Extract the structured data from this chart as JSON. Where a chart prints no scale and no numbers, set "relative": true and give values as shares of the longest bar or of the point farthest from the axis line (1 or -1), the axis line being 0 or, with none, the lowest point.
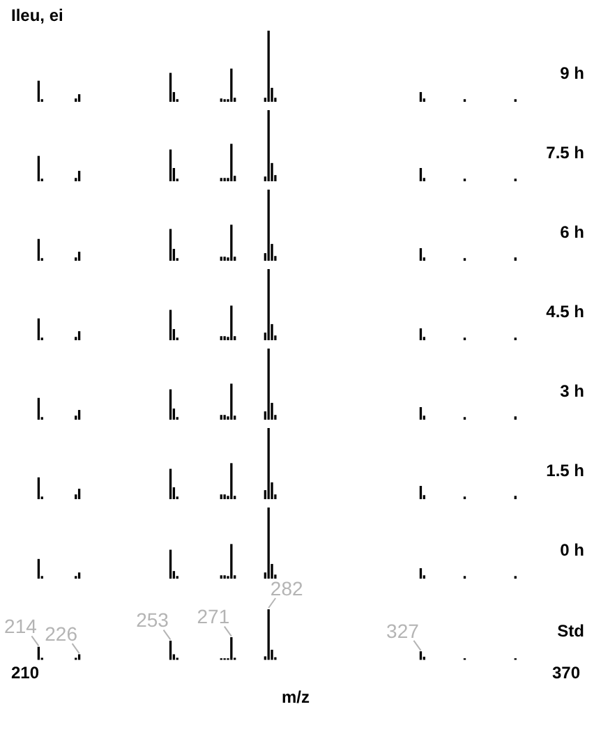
{
  "chart_data": [
    {
      "type": "bar",
      "relative": true,
      "title": "9 h",
      "annotations": [
        "Ileu, ei"
      ],
      "tick_labels": false,
      "xlim": [
        210,
        370
      ],
      "x": [
        214,
        215,
        225,
        226,
        253,
        254,
        255,
        268,
        269,
        270,
        271,
        272,
        281,
        282,
        283,
        284,
        327,
        328,
        340,
        355
      ],
      "series": [
        {
          "color": "#000000",
          "values": [
            0.29,
            0.03,
            0.04,
            0.1,
            0.4,
            0.13,
            0.03,
            0.04,
            0.03,
            0.03,
            0.46,
            0.05,
            0.05,
            1,
            0.19,
            0.05,
            0.13,
            0.04,
            0.03,
            0.03
          ]
        }
      ]
    },
    {
      "type": "bar",
      "relative": true,
      "title": "7.5 h",
      "tick_labels": false,
      "xlim": [
        210,
        370
      ],
      "x": [
        214,
        215,
        225,
        226,
        253,
        254,
        255,
        268,
        269,
        270,
        271,
        272,
        281,
        282,
        283,
        284,
        327,
        328,
        340,
        355
      ],
      "series": [
        {
          "color": "#000000",
          "values": [
            0.35,
            0.03,
            0.04,
            0.14,
            0.44,
            0.18,
            0.03,
            0.04,
            0.04,
            0.04,
            0.52,
            0.07,
            0.06,
            1,
            0.25,
            0.08,
            0.18,
            0.04,
            0.03,
            0.03
          ]
        }
      ]
    },
    {
      "type": "bar",
      "relative": true,
      "title": "6 h",
      "tick_labels": false,
      "xlim": [
        210,
        370
      ],
      "x": [
        214,
        215,
        225,
        226,
        253,
        254,
        255,
        268,
        269,
        270,
        271,
        272,
        281,
        282,
        283,
        284,
        327,
        328,
        340,
        355
      ],
      "series": [
        {
          "color": "#000000",
          "values": [
            0.3,
            0.03,
            0.04,
            0.12,
            0.44,
            0.16,
            0.03,
            0.05,
            0.05,
            0.04,
            0.5,
            0.05,
            0.1,
            1,
            0.23,
            0.06,
            0.17,
            0.04,
            0.03,
            0.04
          ]
        }
      ]
    },
    {
      "type": "bar",
      "relative": true,
      "title": "4.5 h",
      "tick_labels": false,
      "xlim": [
        210,
        370
      ],
      "x": [
        214,
        215,
        225,
        226,
        253,
        254,
        255,
        268,
        269,
        270,
        271,
        272,
        281,
        282,
        283,
        284,
        327,
        328,
        340,
        355
      ],
      "series": [
        {
          "color": "#000000",
          "values": [
            0.3,
            0.03,
            0.04,
            0.12,
            0.42,
            0.15,
            0.03,
            0.05,
            0.05,
            0.04,
            0.48,
            0.05,
            0.1,
            1,
            0.22,
            0.06,
            0.16,
            0.04,
            0.03,
            0.03
          ]
        }
      ]
    },
    {
      "type": "bar",
      "relative": true,
      "title": "3 h",
      "tick_labels": false,
      "xlim": [
        210,
        370
      ],
      "x": [
        214,
        215,
        225,
        226,
        253,
        254,
        255,
        268,
        269,
        270,
        271,
        272,
        281,
        282,
        283,
        284,
        327,
        328,
        340,
        355
      ],
      "series": [
        {
          "color": "#000000",
          "values": [
            0.3,
            0.03,
            0.05,
            0.13,
            0.42,
            0.15,
            0.03,
            0.06,
            0.06,
            0.04,
            0.5,
            0.05,
            0.11,
            1,
            0.23,
            0.06,
            0.17,
            0.05,
            0.03,
            0.04
          ]
        }
      ]
    },
    {
      "type": "bar",
      "relative": true,
      "title": "1.5 h",
      "tick_labels": false,
      "xlim": [
        210,
        370
      ],
      "x": [
        214,
        215,
        225,
        226,
        253,
        254,
        255,
        268,
        269,
        270,
        271,
        272,
        281,
        282,
        283,
        284,
        327,
        328,
        340,
        355
      ],
      "series": [
        {
          "color": "#000000",
          "values": [
            0.3,
            0.03,
            0.06,
            0.14,
            0.42,
            0.16,
            0.03,
            0.06,
            0.06,
            0.04,
            0.5,
            0.04,
            0.12,
            1,
            0.23,
            0.06,
            0.18,
            0.05,
            0.03,
            0.04
          ]
        }
      ]
    },
    {
      "type": "bar",
      "relative": true,
      "title": "0 h",
      "tick_labels": false,
      "xlim": [
        210,
        370
      ],
      "x": [
        214,
        215,
        225,
        226,
        253,
        254,
        255,
        268,
        269,
        270,
        271,
        272,
        281,
        282,
        283,
        284,
        327,
        328,
        340,
        355
      ],
      "series": [
        {
          "color": "#000000",
          "values": [
            0.27,
            0.03,
            0.03,
            0.08,
            0.4,
            0.1,
            0.03,
            0.04,
            0.04,
            0.03,
            0.48,
            0.04,
            0.08,
            1,
            0.2,
            0.05,
            0.14,
            0.04,
            0.03,
            0.03
          ]
        }
      ]
    },
    {
      "type": "bar",
      "relative": true,
      "title": "Std",
      "xlabel": "m/z",
      "tick_labels": "x",
      "xlim": [
        210,
        370
      ],
      "xticks": [
        210,
        370
      ],
      "x": [
        214,
        215,
        225,
        226,
        253,
        254,
        255,
        268,
        269,
        270,
        271,
        272,
        281,
        282,
        283,
        284,
        327,
        328,
        340,
        355
      ],
      "series": [
        {
          "color": "#000000",
          "values": [
            0.25,
            0.03,
            0.03,
            0.1,
            0.37,
            0.1,
            0.03,
            0.02,
            0.02,
            0.02,
            0.44,
            0.03,
            0.06,
            1,
            0.19,
            0.04,
            0.16,
            0.05,
            0.02,
            0.02
          ]
        }
      ],
      "annotations": [
        {
          "text": "214",
          "x": 214,
          "y": 0.25
        },
        {
          "text": "226",
          "x": 226,
          "y": 0.1
        },
        {
          "text": "253",
          "x": 253,
          "y": 0.37
        },
        {
          "text": "271",
          "x": 271,
          "y": 0.44
        },
        {
          "text": "282",
          "x": 282,
          "y": 1
        },
        {
          "text": "327",
          "x": 327,
          "y": 0.16
        }
      ]
    }
  ]
}
